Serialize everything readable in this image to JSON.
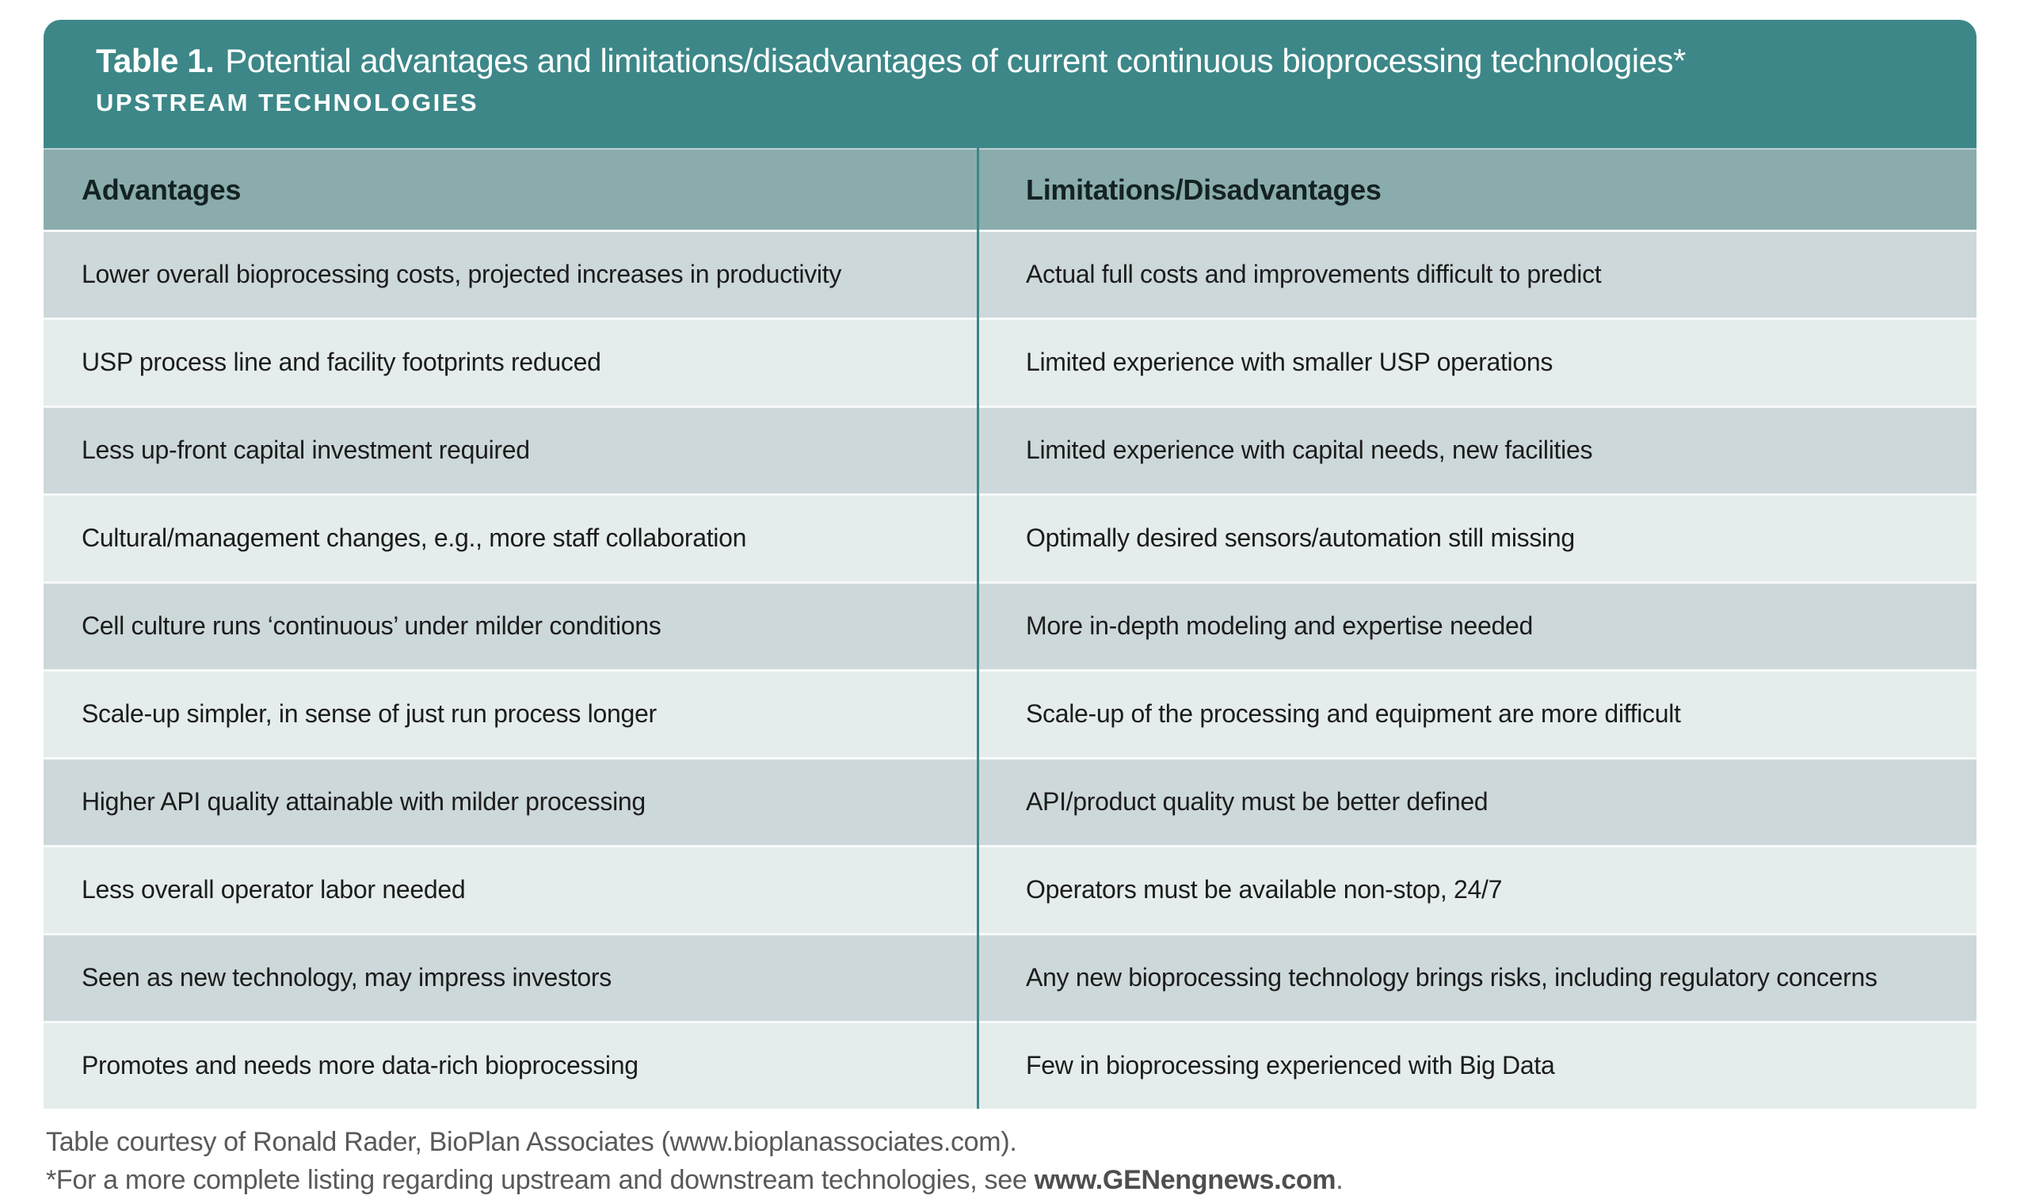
{
  "header": {
    "table_label": "Table 1.",
    "title": "Potential advantages and limitations/disadvantages of current continuous bioprocessing technologies*",
    "subtitle": "UPSTREAM TECHNOLOGIES"
  },
  "table": {
    "columns": [
      "Advantages",
      "Limitations/Disadvantages"
    ],
    "rows": [
      {
        "advantage": "Lower overall bioprocessing costs, projected increases in productivity",
        "limitation": "Actual full costs and improvements difficult to predict"
      },
      {
        "advantage": "USP process line and facility footprints reduced",
        "limitation": "Limited experience with smaller USP operations"
      },
      {
        "advantage": "Less up-front capital investment required",
        "limitation": "Limited experience with capital needs, new facilities"
      },
      {
        "advantage": "Cultural/management changes, e.g., more staff collaboration",
        "limitation": "Optimally desired sensors/automation still missing"
      },
      {
        "advantage": "Cell culture runs ‘continuous’ under milder conditions",
        "limitation": "More in-depth modeling and expertise needed"
      },
      {
        "advantage": "Scale-up simpler, in sense of just run process longer",
        "limitation": "Scale-up of the processing and equipment are more difficult"
      },
      {
        "advantage": "Higher API quality attainable with milder processing",
        "limitation": "API/product quality must be better defined"
      },
      {
        "advantage": "Less overall operator labor needed",
        "limitation": "Operators must be available non-stop, 24/7"
      },
      {
        "advantage": "Seen as new technology, may impress investors",
        "limitation": "Any new bioprocessing technology brings risks, including regulatory concerns"
      },
      {
        "advantage": "Promotes and needs more data-rich bioprocessing",
        "limitation": "Few in bioprocessing experienced with Big Data"
      }
    ]
  },
  "footer": {
    "credit": "Table courtesy of Ronald Rader, BioPlan Associates (www.bioplanassociates.com).",
    "note_prefix": "*For a more complete listing regarding upstream and downstream technologies, see ",
    "note_link": "www.GENengnews.com",
    "note_suffix": "."
  },
  "colors": {
    "header_teal": "#3d8788",
    "column_header_bg": "#8aacad",
    "row_dark": "#cdd8da",
    "row_light": "#e5ecec",
    "divider_teal": "#3d8788",
    "body_text": "#1c1c1c",
    "footer_text": "#58595b"
  }
}
